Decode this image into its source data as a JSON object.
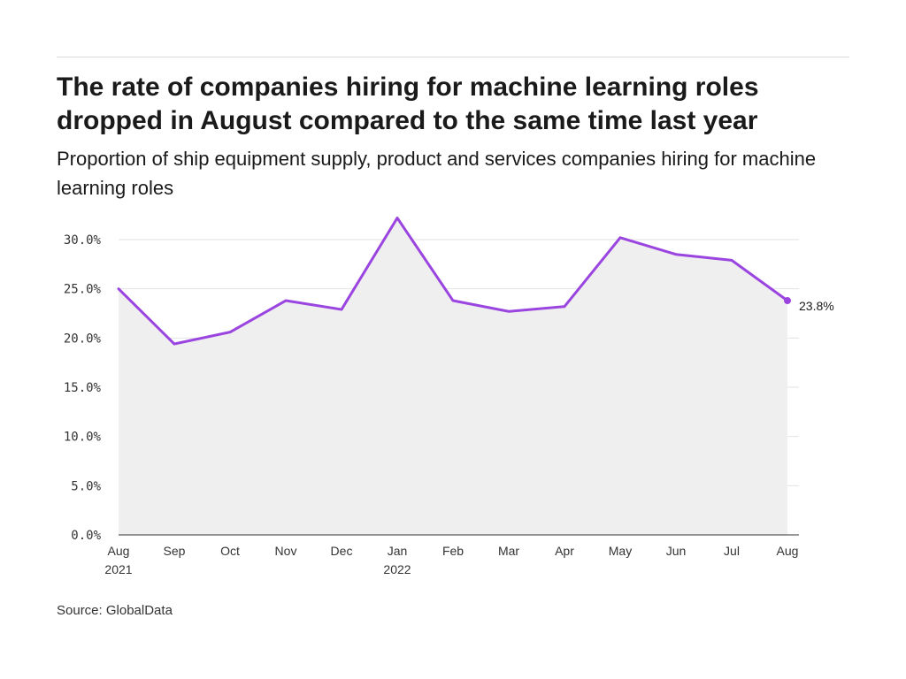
{
  "title": "The rate of companies hiring for machine learning roles dropped in August compared to the same time last year",
  "subtitle": "Proportion of ship equipment supply, product and services companies hiring for machine learning roles",
  "source": "Source: GlobalData",
  "colors": {
    "line": "#9b45e0",
    "area": "#efefef",
    "grid": "#e2e2e2",
    "axis": "#333333"
  },
  "chart_data": {
    "type": "area",
    "title": "The rate of companies hiring for machine learning roles dropped in August compared to the same time last year",
    "xlabel": "",
    "ylabel": "",
    "categories": [
      "Aug",
      "Sep",
      "Oct",
      "Nov",
      "Dec",
      "Jan",
      "Feb",
      "Mar",
      "Apr",
      "May",
      "Jun",
      "Jul",
      "Aug"
    ],
    "category_sublabels": [
      "2021",
      "",
      "",
      "",
      "",
      "2022",
      "",
      "",
      "",
      "",
      "",
      "",
      ""
    ],
    "series": [
      {
        "name": "Companies hiring for machine learning roles",
        "values": [
          25.0,
          19.4,
          20.6,
          23.8,
          22.9,
          32.2,
          23.8,
          22.7,
          23.2,
          30.2,
          28.5,
          27.9,
          23.8
        ]
      }
    ],
    "ylim": [
      0,
      30
    ],
    "yticks": [
      0,
      5,
      10,
      15,
      20,
      25,
      30
    ],
    "ytick_labels": [
      "0.0%",
      "5.0%",
      "10.0%",
      "15.0%",
      "20.0%",
      "25.0%",
      "30.0%"
    ],
    "grid": true,
    "end_label": "23.8%"
  }
}
